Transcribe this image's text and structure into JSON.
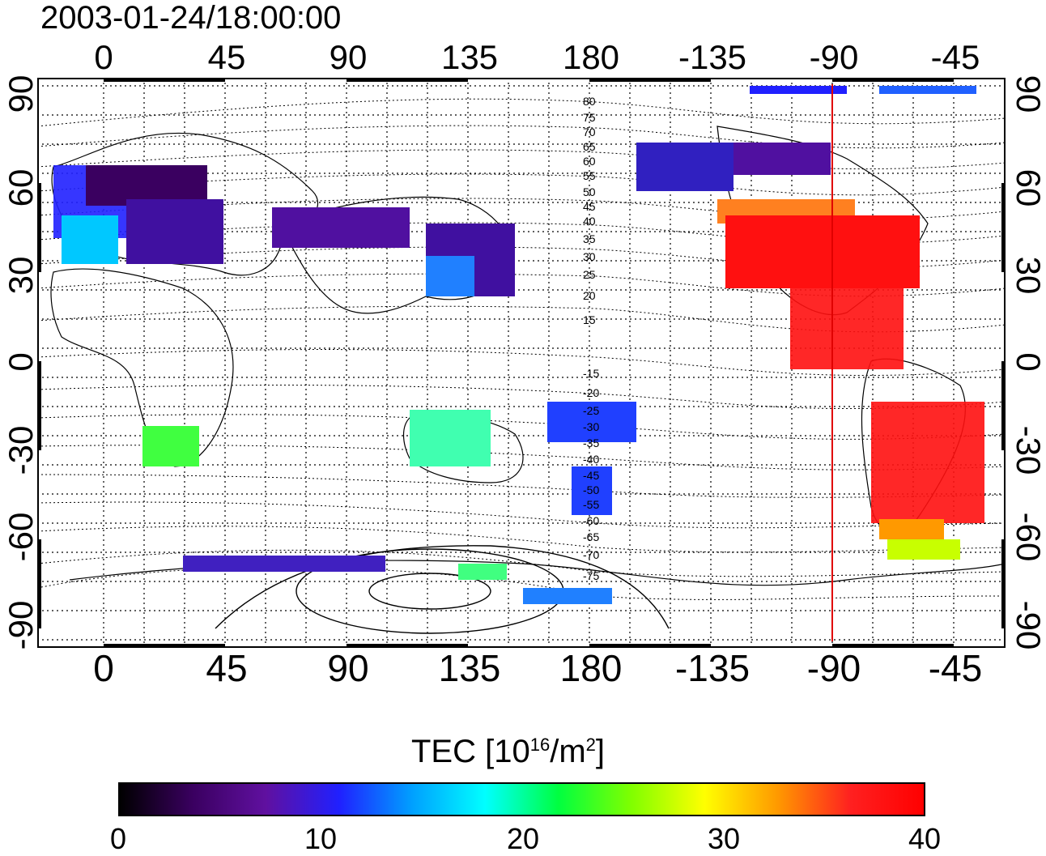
{
  "map": {
    "title": "2003-01-24/18:00:00",
    "lon_ticks": [
      "0",
      "45",
      "90",
      "135",
      "180",
      "-135",
      "-90",
      "-45"
    ],
    "lat_ticks": [
      "90",
      "60",
      "30",
      "0",
      "-30",
      "-60",
      "-90"
    ],
    "contour_labels_north": [
      "80",
      "75",
      "70",
      "65",
      "60",
      "55",
      "50",
      "45",
      "40",
      "35",
      "30",
      "25",
      "20",
      "15"
    ],
    "contour_labels_south": [
      "-15",
      "-20",
      "-25",
      "-30",
      "-35",
      "-40",
      "-45",
      "-50",
      "-55",
      "-60",
      "-65",
      "-70",
      "-75"
    ],
    "meridian_marker_lon": -90,
    "marker_color": "#e00000",
    "colorbar": {
      "title_main": "TEC  [10",
      "title_exp1": "16",
      "title_mid": "/m",
      "title_exp2": "2",
      "title_end": "]",
      "ticks": [
        "0",
        "10",
        "20",
        "30",
        "40"
      ],
      "range": [
        0,
        40
      ],
      "colormap": [
        "#000000",
        "#3a0060",
        "#6010a0",
        "#2020ff",
        "#00a0ff",
        "#00ffff",
        "#00ff40",
        "#80ff00",
        "#ffff00",
        "#ff9900",
        "#ff2020",
        "#ff0000"
      ]
    }
  }
}
